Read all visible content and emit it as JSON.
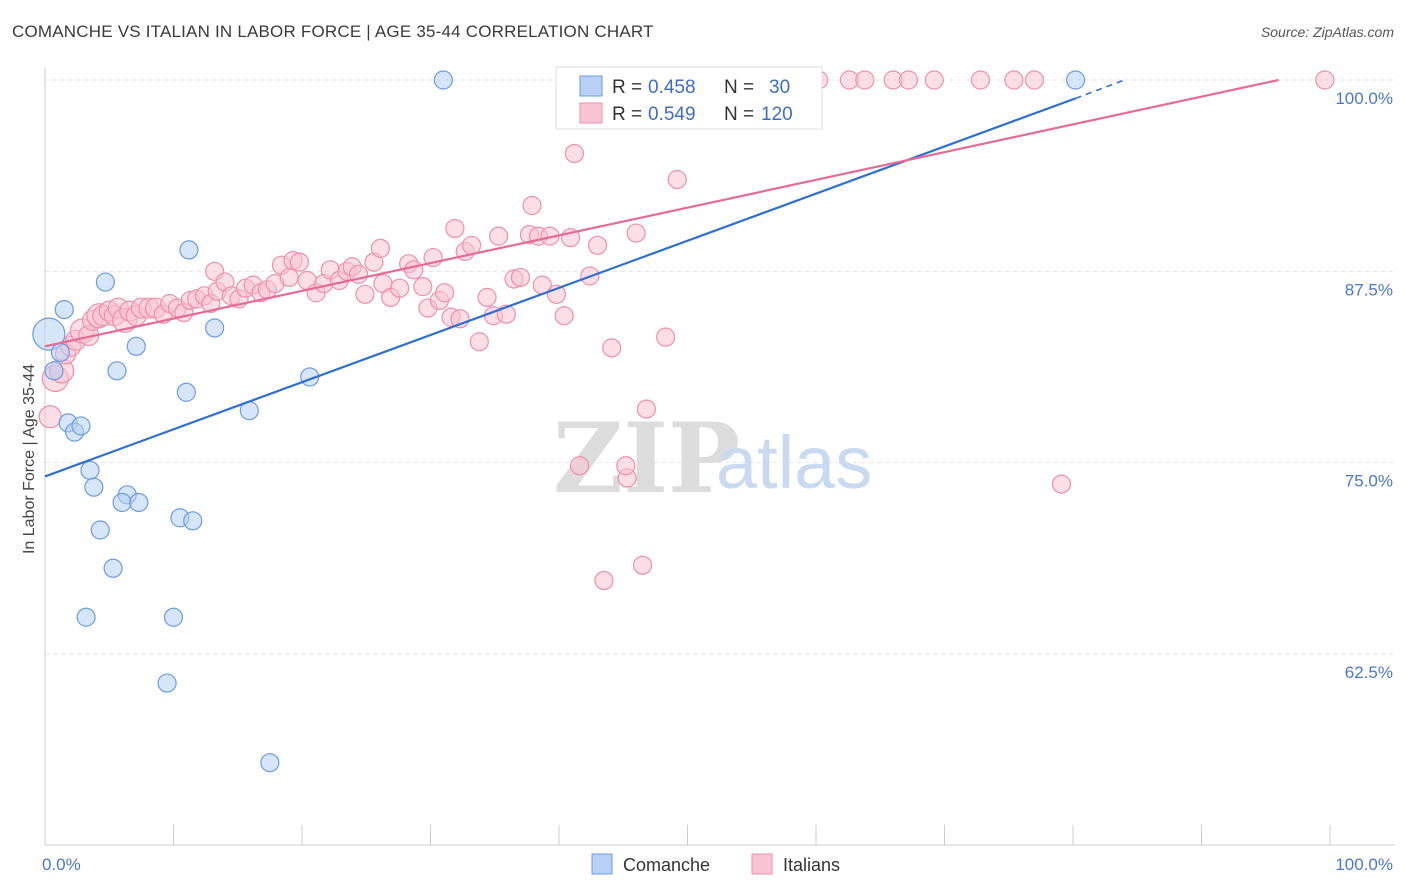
{
  "title": "COMANCHE VS ITALIAN IN LABOR FORCE | AGE 35-44 CORRELATION CHART",
  "source": "Source: ZipAtlas.com",
  "watermark": {
    "zip": "ZIP",
    "atlas": "atlas"
  },
  "colors": {
    "comanche_fill": "#b7d0f3",
    "comanche_stroke": "#6b9be0",
    "comanche_line": "#2f6fd0",
    "italian_fill": "#f8c3d2",
    "italian_stroke": "#ee8fae",
    "italian_line": "#e66a96",
    "grid": "#e3e3e3",
    "axis_text": "#4a78c8"
  },
  "legend": {
    "rows": [
      {
        "r_label": "R =",
        "r_value": "0.458",
        "n_label": "N =",
        "n_value": "30"
      },
      {
        "r_label": "R =",
        "r_value": "0.549",
        "n_label": "N =",
        "n_value": "120"
      }
    ]
  },
  "bottom_legend": {
    "comanche": "Comanche",
    "italians": "Italians"
  },
  "chart_data": {
    "type": "scatter",
    "title": "COMANCHE VS ITALIAN IN LABOR FORCE | AGE 35-44 CORRELATION CHART",
    "xlabel": "",
    "ylabel": "In Labor Force | Age 35-44",
    "xlim": [
      0,
      100
    ],
    "ylim": [
      50.5,
      101
    ],
    "x_tick_labels": [
      "0.0%",
      "100.0%"
    ],
    "y_ticks": [
      62.5,
      75.0,
      87.5,
      100.0
    ],
    "y_tick_labels": [
      "62.5%",
      "75.0%",
      "87.5%",
      "100.0%"
    ],
    "series": [
      {
        "name": "Comanche",
        "R": 0.458,
        "N": 30,
        "trend": {
          "x0": 0,
          "y0": 74.1,
          "x1": 80.2,
          "y1": 98.8,
          "dash_to_x": 84.0,
          "dash_to_y": 100.0
        },
        "points": [
          [
            0.3,
            83.4,
            16
          ],
          [
            0.7,
            81.0,
            9
          ],
          [
            1.2,
            82.2,
            9
          ],
          [
            1.5,
            85.0,
            9
          ],
          [
            1.8,
            77.6,
            9
          ],
          [
            2.3,
            77.0,
            9
          ],
          [
            2.8,
            77.4,
            9
          ],
          [
            3.5,
            74.5,
            9
          ],
          [
            3.8,
            73.4,
            9
          ],
          [
            4.3,
            70.6,
            9
          ],
          [
            4.7,
            86.8,
            9
          ],
          [
            5.3,
            68.1,
            9
          ],
          [
            5.6,
            81.0,
            9
          ],
          [
            6.4,
            72.9,
            9
          ],
          [
            6.0,
            72.4,
            9
          ],
          [
            7.3,
            72.4,
            9
          ],
          [
            7.1,
            82.6,
            9
          ],
          [
            3.2,
            64.9,
            9
          ],
          [
            10.0,
            64.9,
            9
          ],
          [
            9.5,
            60.6,
            9
          ],
          [
            10.5,
            71.4,
            9
          ],
          [
            11.5,
            71.2,
            9
          ],
          [
            11.0,
            79.6,
            9
          ],
          [
            11.2,
            88.9,
            9
          ],
          [
            13.2,
            83.8,
            9
          ],
          [
            15.9,
            78.4,
            9
          ],
          [
            17.5,
            55.4,
            9
          ],
          [
            20.6,
            80.6,
            9
          ],
          [
            31.0,
            100.0,
            9
          ],
          [
            80.2,
            100.0,
            9
          ]
        ]
      },
      {
        "name": "Italians",
        "R": 0.549,
        "N": 120,
        "trend": {
          "x0": 0,
          "y0": 82.6,
          "x1": 96.0,
          "y1": 100.0
        },
        "points": [
          [
            0.4,
            78.0,
            11
          ],
          [
            0.8,
            80.5,
            13
          ],
          [
            1.3,
            81.0,
            12
          ],
          [
            1.6,
            82.1,
            10
          ],
          [
            2.0,
            82.6,
            10
          ],
          [
            2.4,
            83.0,
            10
          ],
          [
            2.9,
            83.6,
            12
          ],
          [
            3.4,
            83.3,
            10
          ],
          [
            3.7,
            84.3,
            10
          ],
          [
            4.2,
            84.6,
            12
          ],
          [
            4.5,
            84.6,
            10
          ],
          [
            5.0,
            84.9,
            10
          ],
          [
            5.4,
            84.6,
            10
          ],
          [
            5.7,
            85.1,
            10
          ],
          [
            6.2,
            84.3,
            12
          ],
          [
            6.6,
            84.9,
            10
          ],
          [
            7.1,
            84.6,
            10
          ],
          [
            7.5,
            85.1,
            10
          ],
          [
            8.1,
            85.1,
            10
          ],
          [
            8.6,
            85.1,
            10
          ],
          [
            9.2,
            84.7,
            9
          ],
          [
            9.7,
            85.4,
            9
          ],
          [
            10.3,
            85.1,
            9
          ],
          [
            10.8,
            84.8,
            9
          ],
          [
            11.3,
            85.6,
            9
          ],
          [
            11.8,
            85.7,
            9
          ],
          [
            12.4,
            85.9,
            9
          ],
          [
            12.9,
            85.4,
            9
          ],
          [
            13.4,
            86.2,
            9
          ],
          [
            13.2,
            87.5,
            9
          ],
          [
            14.0,
            86.8,
            9
          ],
          [
            14.5,
            85.9,
            9
          ],
          [
            15.1,
            85.7,
            9
          ],
          [
            15.6,
            86.4,
            9
          ],
          [
            16.2,
            86.6,
            9
          ],
          [
            16.8,
            86.1,
            9
          ],
          [
            17.3,
            86.3,
            9
          ],
          [
            17.9,
            86.7,
            9
          ],
          [
            18.4,
            87.9,
            9
          ],
          [
            19.0,
            87.1,
            9
          ],
          [
            19.3,
            88.2,
            9
          ],
          [
            19.8,
            88.1,
            9
          ],
          [
            20.4,
            86.9,
            9
          ],
          [
            21.1,
            86.1,
            9
          ],
          [
            21.7,
            86.7,
            9
          ],
          [
            22.2,
            87.6,
            9
          ],
          [
            22.9,
            86.9,
            9
          ],
          [
            23.5,
            87.5,
            9
          ],
          [
            23.9,
            87.8,
            9
          ],
          [
            24.4,
            87.3,
            9
          ],
          [
            24.9,
            86.0,
            9
          ],
          [
            25.6,
            88.1,
            9
          ],
          [
            26.3,
            86.7,
            9
          ],
          [
            26.1,
            89.0,
            9
          ],
          [
            26.9,
            85.8,
            9
          ],
          [
            27.6,
            86.4,
            9
          ],
          [
            28.3,
            88.0,
            9
          ],
          [
            28.7,
            87.6,
            9
          ],
          [
            29.4,
            86.5,
            9
          ],
          [
            29.8,
            85.1,
            9
          ],
          [
            30.2,
            88.4,
            9
          ],
          [
            30.7,
            85.6,
            9
          ],
          [
            31.1,
            86.1,
            9
          ],
          [
            31.6,
            84.5,
            9
          ],
          [
            31.9,
            90.3,
            9
          ],
          [
            32.3,
            84.4,
            9
          ],
          [
            32.7,
            88.8,
            9
          ],
          [
            33.2,
            89.2,
            9
          ],
          [
            33.8,
            82.9,
            9
          ],
          [
            34.4,
            85.8,
            9
          ],
          [
            34.9,
            84.6,
            9
          ],
          [
            35.3,
            89.8,
            9
          ],
          [
            35.9,
            84.7,
            9
          ],
          [
            36.5,
            87.0,
            9
          ],
          [
            37.0,
            87.1,
            9
          ],
          [
            37.7,
            89.9,
            9
          ],
          [
            37.9,
            91.8,
            9
          ],
          [
            38.4,
            89.8,
            9
          ],
          [
            38.7,
            86.6,
            9
          ],
          [
            39.3,
            89.8,
            9
          ],
          [
            39.8,
            86.0,
            9
          ],
          [
            40.4,
            84.6,
            9
          ],
          [
            40.9,
            89.7,
            9
          ],
          [
            41.2,
            95.2,
            9
          ],
          [
            41.6,
            74.8,
            9
          ],
          [
            42.4,
            87.2,
            9
          ],
          [
            43.0,
            89.2,
            9
          ],
          [
            43.5,
            67.3,
            9
          ],
          [
            44.1,
            82.5,
            9
          ],
          [
            45.3,
            74.0,
            9
          ],
          [
            45.2,
            74.8,
            9
          ],
          [
            46.0,
            90.0,
            9
          ],
          [
            46.8,
            78.5,
            9
          ],
          [
            46.5,
            68.3,
            9
          ],
          [
            48.3,
            83.2,
            9
          ],
          [
            49.2,
            93.5,
            9
          ],
          [
            41.5,
            100.0,
            9
          ],
          [
            43.6,
            100.0,
            9
          ],
          [
            45.0,
            100.0,
            9
          ],
          [
            46.4,
            100.0,
            9
          ],
          [
            48.0,
            100.0,
            9
          ],
          [
            49.5,
            100.0,
            9
          ],
          [
            51.0,
            100.0,
            9
          ],
          [
            52.6,
            100.0,
            9
          ],
          [
            54.3,
            100.0,
            9
          ],
          [
            55.9,
            100.0,
            9
          ],
          [
            57.6,
            100.0,
            9
          ],
          [
            60.2,
            100.0,
            9
          ],
          [
            62.6,
            100.0,
            9
          ],
          [
            63.8,
            100.0,
            9
          ],
          [
            66.0,
            100.0,
            9
          ],
          [
            67.2,
            100.0,
            9
          ],
          [
            69.2,
            100.0,
            9
          ],
          [
            72.8,
            100.0,
            9
          ],
          [
            75.4,
            100.0,
            9
          ],
          [
            77.0,
            100.0,
            9
          ],
          [
            79.1,
            73.6,
            9
          ],
          [
            99.6,
            100.0,
            9
          ]
        ]
      }
    ]
  }
}
